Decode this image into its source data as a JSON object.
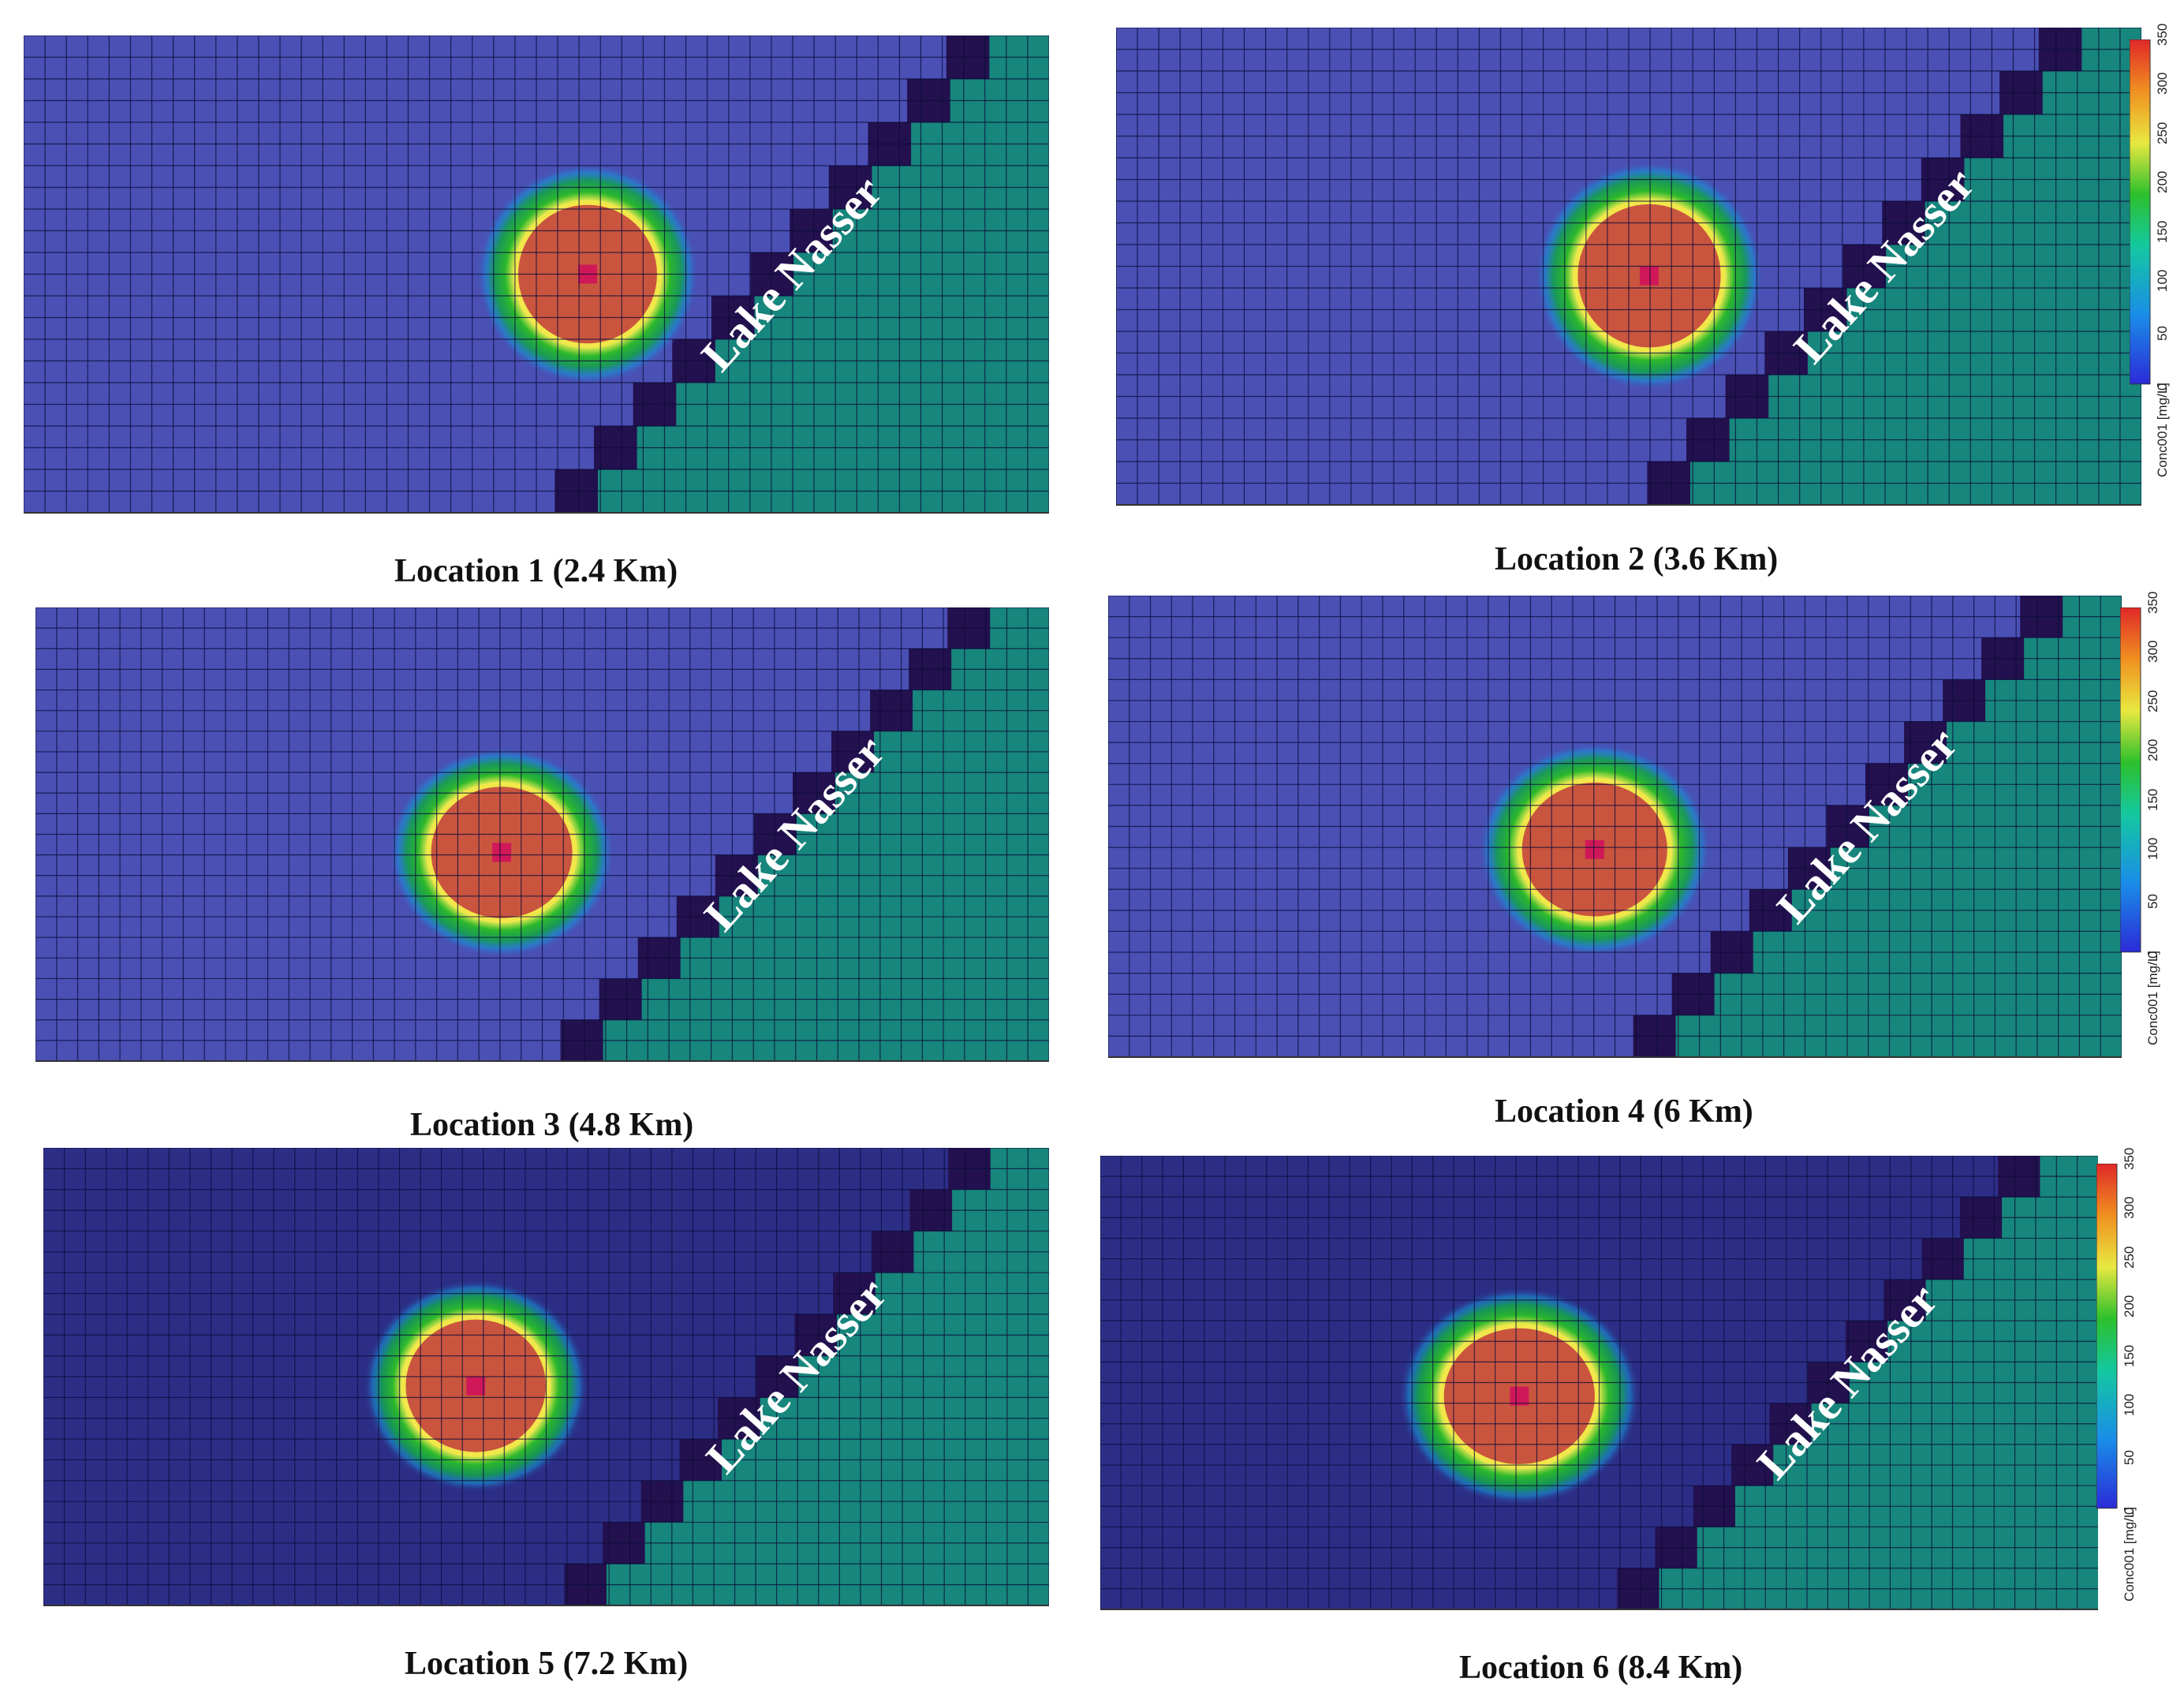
{
  "panels": [
    {
      "caption": "Location 1 (2.4 Km)",
      "lake_label": "Lake Nasser",
      "colorbar": false,
      "dark": false
    },
    {
      "caption": "Location 2 (3.6 Km)",
      "lake_label": "Lake Nasser",
      "colorbar": true,
      "dark": false
    },
    {
      "caption": "Location 3 (4.8 Km)",
      "lake_label": "Lake Nasser",
      "colorbar": false,
      "dark": false
    },
    {
      "caption": "Location 4 (6 Km)",
      "lake_label": "Lake Nasser",
      "colorbar": true,
      "dark": false
    },
    {
      "caption": "Location 5 (7.2 Km)",
      "lake_label": "Lake Nasser",
      "colorbar": false,
      "dark": true
    },
    {
      "caption": "Location 6 (8.4 Km)",
      "lake_label": "Lake Nasser",
      "colorbar": true,
      "dark": true
    }
  ],
  "colorbar": {
    "title": "Conc001 [mg/L]",
    "ticks": [
      "0",
      "50",
      "100",
      "150",
      "200",
      "250",
      "300",
      "350"
    ]
  },
  "colors": {
    "land": "#4a50b4",
    "land_dark": "#2c2e86",
    "lake": "#17867c",
    "shore": "#23104e",
    "plume_core": "#c9553f",
    "source_cell": "#d01858"
  }
}
